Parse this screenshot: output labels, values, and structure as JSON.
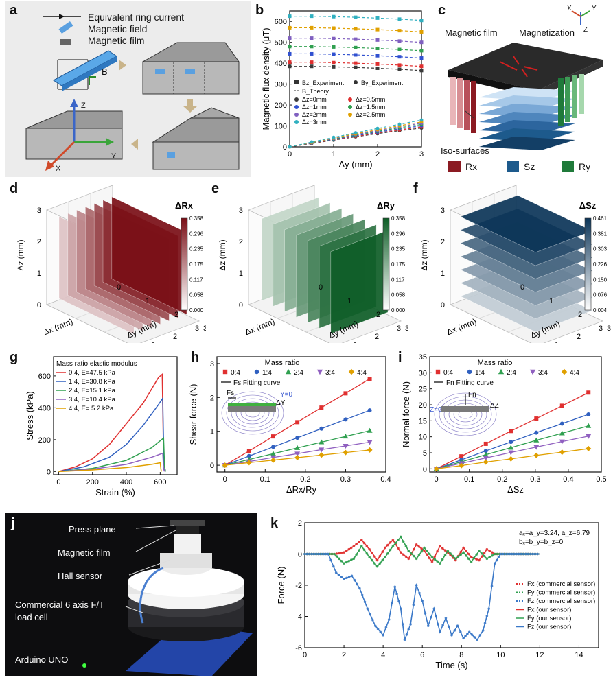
{
  "panel_labels": {
    "a": "a",
    "b": "b",
    "c": "c",
    "d": "d",
    "e": "e",
    "f": "f",
    "g": "g",
    "h": "h",
    "i": "i",
    "j": "j",
    "k": "k"
  },
  "panel_a": {
    "legend": [
      "Equivalent ring current",
      "Magnetic field",
      "Magnetic film"
    ],
    "b_label": "B",
    "axes": {
      "z": "Z",
      "y": "Y",
      "x": "X"
    }
  },
  "panel_c": {
    "labels": {
      "film": "Magnetic film",
      "magnetization": "Magnetization",
      "iso": "Iso-surfaces"
    },
    "legend": [
      {
        "name": "Rx",
        "color": "#8b1a22"
      },
      {
        "name": "Sz",
        "color": "#1d5a8c"
      },
      {
        "name": "Ry",
        "color": "#1f7a3a"
      }
    ],
    "axes": {
      "x": "X",
      "y": "Y",
      "z": "Z"
    }
  },
  "panels_def": [
    {
      "id": "d",
      "colorbar_title": "ΔRx",
      "ticks": [
        "0.358",
        "0.296",
        "0.235",
        "0.175",
        "0.117",
        "0.058",
        "0.000"
      ],
      "grad_top": "#7a0f16",
      "grad_bottom": "#ffffff",
      "xlabel": "Δx (mm)",
      "ylabel": "Δy (mm)",
      "zlabel": "Δz (mm)"
    },
    {
      "id": "e",
      "colorbar_title": "ΔRy",
      "ticks": [
        "0.358",
        "0.296",
        "0.235",
        "0.175",
        "0.117",
        "0.058",
        "0.000"
      ],
      "grad_top": "#0f5e28",
      "grad_bottom": "#ffffff",
      "xlabel": "Δx (mm)",
      "ylabel": "Δy (mm)",
      "zlabel": "Δz (mm)"
    },
    {
      "id": "f",
      "colorbar_title": "ΔSz",
      "ticks": [
        "0.461",
        "0.381",
        "0.303",
        "0.226",
        "0.150",
        "0.076",
        "0.004"
      ],
      "grad_top": "#0c3558",
      "grad_bottom": "#ffffff",
      "xlabel": "Δx (mm)",
      "ylabel": "Δy (mm)",
      "zlabel": "Δz (mm)"
    }
  ],
  "panel_j": {
    "labels": [
      "Press plane",
      "Magnetic film",
      "Hall sensor",
      "Commercial 6 axis F/T",
      "load cell",
      "Arduino UNO"
    ]
  },
  "chart_data": [
    {
      "id": "b",
      "type": "scatter",
      "xlabel": "Δy (mm)",
      "ylabel": "Magnetic flux density (μT)",
      "xlim": [
        0,
        3
      ],
      "ylim": [
        0,
        650
      ],
      "xticks": [
        0,
        1,
        2,
        3
      ],
      "yticks": [
        0,
        100,
        200,
        300,
        400,
        500,
        600
      ],
      "legend": [
        "Bz_Experiment",
        "By_Experiment",
        "B_Theory"
      ],
      "legend2": [
        "Δz=0mm",
        "Δz=0.5mm",
        "Δz=1mm",
        "Δz=1.5mm",
        "Δz=2mm",
        "Δz=2.5mm",
        "Δz=3mm"
      ],
      "x": [
        0,
        0.5,
        1,
        1.5,
        2,
        2.5,
        3
      ],
      "series": [
        {
          "name": "Δz=0mm",
          "color": "#3b3b3b",
          "bz": [
            385,
            385,
            383,
            380,
            376,
            371,
            365
          ],
          "by": [
            0,
            16,
            32,
            48,
            63,
            77,
            90
          ]
        },
        {
          "name": "Δz=0.5mm",
          "color": "#e03030",
          "bz": [
            405,
            405,
            403,
            400,
            396,
            391,
            385
          ],
          "by": [
            0,
            17,
            34,
            50,
            66,
            81,
            95
          ]
        },
        {
          "name": "Δz=1mm",
          "color": "#3050d0",
          "bz": [
            445,
            445,
            443,
            440,
            436,
            431,
            425
          ],
          "by": [
            0,
            18,
            36,
            53,
            70,
            86,
            101
          ]
        },
        {
          "name": "Δz=1.5mm",
          "color": "#30a050",
          "bz": [
            480,
            480,
            478,
            475,
            471,
            466,
            460
          ],
          "by": [
            0,
            19,
            38,
            56,
            74,
            91,
            107
          ]
        },
        {
          "name": "Δz=2mm",
          "color": "#8060c0",
          "bz": [
            520,
            520,
            518,
            515,
            511,
            506,
            500
          ],
          "by": [
            0,
            20,
            40,
            59,
            78,
            96,
            113
          ]
        },
        {
          "name": "Δz=2.5mm",
          "color": "#e0a000",
          "bz": [
            570,
            570,
            568,
            565,
            561,
            556,
            550
          ],
          "by": [
            0,
            21,
            42,
            62,
            82,
            101,
            119
          ]
        },
        {
          "name": "Δz=3mm",
          "color": "#30b0c0",
          "bz": [
            625,
            625,
            623,
            620,
            616,
            611,
            605
          ],
          "by": [
            0,
            23,
            45,
            67,
            88,
            108,
            128
          ]
        }
      ]
    },
    {
      "id": "g",
      "type": "line",
      "xlabel": "Strain (%)",
      "ylabel": "Stress (kPa)",
      "xlim": [
        -30,
        700
      ],
      "ylim": [
        -20,
        720
      ],
      "xticks": [
        0,
        200,
        400,
        600
      ],
      "yticks": [
        0,
        200,
        400,
        600
      ],
      "legend_title": "Mass ratio,elastic modulus",
      "series": [
        {
          "name": "0:4, E=47.5 kPa",
          "color": "#e03030",
          "points": [
            [
              0,
              0
            ],
            [
              100,
              30
            ],
            [
              200,
              80
            ],
            [
              300,
              170
            ],
            [
              400,
              300
            ],
            [
              500,
              430
            ],
            [
              590,
              590
            ],
            [
              612,
              610
            ],
            [
              620,
              80
            ],
            [
              630,
              0
            ]
          ]
        },
        {
          "name": "1:4, E=30.8 kPa",
          "color": "#3060c0",
          "points": [
            [
              0,
              0
            ],
            [
              150,
              30
            ],
            [
              300,
              90
            ],
            [
              400,
              170
            ],
            [
              500,
              290
            ],
            [
              590,
              420
            ],
            [
              615,
              460
            ],
            [
              622,
              60
            ],
            [
              630,
              0
            ]
          ]
        },
        {
          "name": "2:4, E=15.1 kPa",
          "color": "#30a050",
          "points": [
            [
              0,
              0
            ],
            [
              200,
              20
            ],
            [
              400,
              70
            ],
            [
              550,
              150
            ],
            [
              620,
              210
            ],
            [
              626,
              30
            ],
            [
              632,
              0
            ]
          ]
        },
        {
          "name": "3:4, E=10.4 kPa",
          "color": "#9060c0",
          "points": [
            [
              0,
              0
            ],
            [
              200,
              15
            ],
            [
              400,
              45
            ],
            [
              550,
              90
            ],
            [
              615,
              115
            ],
            [
              620,
              20
            ],
            [
              625,
              0
            ]
          ]
        },
        {
          "name": "4:4, E= 5.2 kPa",
          "color": "#e0a000",
          "points": [
            [
              0,
              0
            ],
            [
              200,
              10
            ],
            [
              400,
              25
            ],
            [
              550,
              45
            ],
            [
              600,
              55
            ],
            [
              605,
              10
            ],
            [
              608,
              0
            ]
          ]
        }
      ]
    },
    {
      "id": "h",
      "type": "scatter",
      "xlabel": "ΔRx/Ry",
      "ylabel": "Shear force (N)",
      "xlim": [
        -0.02,
        0.4
      ],
      "ylim": [
        -0.2,
        3.2
      ],
      "xticks": [
        0,
        0.1,
        0.2,
        0.3,
        0.4
      ],
      "yticks": [
        0,
        1,
        2,
        3
      ],
      "legend_title": "Mass ratio",
      "fit_label": "Fs Fitting curve",
      "inset": {
        "f": "Fs",
        "y0": "Y=0",
        "dy": "ΔY"
      },
      "x": [
        0,
        0.06,
        0.12,
        0.18,
        0.24,
        0.3,
        0.36
      ],
      "series": [
        {
          "name": "0:4",
          "color": "#e03030",
          "marker": "square",
          "y": [
            0,
            0.42,
            0.85,
            1.27,
            1.7,
            2.12,
            2.55
          ]
        },
        {
          "name": "1:4",
          "color": "#3060c0",
          "marker": "circle",
          "y": [
            0,
            0.27,
            0.54,
            0.81,
            1.08,
            1.35,
            1.62
          ]
        },
        {
          "name": "2:4",
          "color": "#30a050",
          "marker": "triangle",
          "y": [
            0,
            0.17,
            0.34,
            0.51,
            0.68,
            0.85,
            1.02
          ]
        },
        {
          "name": "3:4",
          "color": "#9060c0",
          "marker": "down",
          "y": [
            0,
            0.11,
            0.23,
            0.34,
            0.46,
            0.57,
            0.68
          ]
        },
        {
          "name": "4:4",
          "color": "#e0a000",
          "marker": "diamond",
          "y": [
            0,
            0.075,
            0.15,
            0.225,
            0.3,
            0.375,
            0.45
          ]
        }
      ]
    },
    {
      "id": "i",
      "type": "scatter",
      "xlabel": "ΔSz",
      "ylabel": "Normal force (N)",
      "xlim": [
        -0.02,
        0.5
      ],
      "ylim": [
        -1,
        35
      ],
      "xticks": [
        0,
        0.1,
        0.2,
        0.3,
        0.4,
        0.5
      ],
      "yticks": [
        0,
        5,
        10,
        15,
        20,
        25,
        30,
        35
      ],
      "legend_title": "Mass ratio",
      "fit_label": "Fn Fitting curve",
      "inset": {
        "f": "Fn",
        "z0": "Z=0",
        "dz": "ΔZ"
      },
      "x": [
        0,
        0.076,
        0.15,
        0.226,
        0.303,
        0.381,
        0.461
      ],
      "series": [
        {
          "name": "0:4",
          "color": "#e03030",
          "marker": "square",
          "y": [
            0,
            3.9,
            7.8,
            11.8,
            15.7,
            19.7,
            23.8
          ]
        },
        {
          "name": "1:4",
          "color": "#3060c0",
          "marker": "circle",
          "y": [
            0,
            2.8,
            5.6,
            8.4,
            11.3,
            14.1,
            17.0
          ]
        },
        {
          "name": "2:4",
          "color": "#30a050",
          "marker": "triangle",
          "y": [
            0,
            2.2,
            4.4,
            6.6,
            8.9,
            11.1,
            13.4
          ]
        },
        {
          "name": "3:4",
          "color": "#9060c0",
          "marker": "down",
          "y": [
            0,
            1.7,
            3.4,
            5.1,
            6.8,
            8.5,
            10.2
          ]
        },
        {
          "name": "4:4",
          "color": "#e0a000",
          "marker": "diamond",
          "y": [
            0,
            1.0,
            2.1,
            3.1,
            4.2,
            5.2,
            6.3
          ]
        }
      ]
    },
    {
      "id": "k",
      "type": "line",
      "xlabel": "Time (s)",
      "ylabel": "Force (N)",
      "xlim": [
        0,
        15
      ],
      "ylim": [
        -6,
        2
      ],
      "xticks": [
        0,
        2,
        4,
        6,
        8,
        10,
        12,
        14
      ],
      "yticks": [
        -6,
        -4,
        -2,
        0,
        2
      ],
      "annotation": [
        "aₓ=a_y=3.24, a_z=6.79",
        "bₓ=b_y=b_z=0"
      ],
      "legend": [
        "Fx (commercial sensor)",
        "Fy (commercial sensor)",
        "Fz (commercial sensor)",
        "Fx (our sensor)",
        "Fy (our sensor)",
        "Fz (our sensor)"
      ],
      "series": [
        {
          "name": "Fx",
          "color": "#e03030",
          "points": [
            [
              0,
              0
            ],
            [
              1.5,
              0
            ],
            [
              2,
              0.1
            ],
            [
              2.5,
              0.5
            ],
            [
              2.9,
              0.9
            ],
            [
              3.3,
              0.3
            ],
            [
              3.7,
              -0.4
            ],
            [
              4.1,
              0.4
            ],
            [
              4.5,
              0.9
            ],
            [
              4.9,
              0.1
            ],
            [
              5.3,
              -0.3
            ],
            [
              5.7,
              0.6
            ],
            [
              6.1,
              0.2
            ],
            [
              6.5,
              -0.5
            ],
            [
              6.9,
              0.5
            ],
            [
              7.3,
              0.1
            ],
            [
              7.7,
              -0.4
            ],
            [
              8.1,
              0.4
            ],
            [
              8.5,
              -0.2
            ],
            [
              8.9,
              -0.4
            ],
            [
              9.3,
              0.3
            ],
            [
              9.7,
              0
            ],
            [
              12,
              0
            ]
          ]
        },
        {
          "name": "Fy",
          "color": "#30a050",
          "points": [
            [
              0,
              0
            ],
            [
              1.5,
              0
            ],
            [
              2,
              -0.6
            ],
            [
              2.5,
              -0.3
            ],
            [
              2.9,
              0.5
            ],
            [
              3.3,
              -0.2
            ],
            [
              3.7,
              -0.8
            ],
            [
              4.1,
              -0.2
            ],
            [
              4.5,
              0.5
            ],
            [
              4.9,
              1.1
            ],
            [
              5.3,
              0.2
            ],
            [
              5.7,
              -0.3
            ],
            [
              6.1,
              0.4
            ],
            [
              6.5,
              -0.2
            ],
            [
              6.9,
              -0.6
            ],
            [
              7.3,
              0.2
            ],
            [
              7.7,
              -0.3
            ],
            [
              8.1,
              0.1
            ],
            [
              8.5,
              -0.5
            ],
            [
              8.9,
              0.2
            ],
            [
              9.3,
              -0.3
            ],
            [
              9.7,
              0
            ],
            [
              12,
              0
            ]
          ]
        },
        {
          "name": "Fz",
          "color": "#3a78c8",
          "points": [
            [
              0,
              0
            ],
            [
              1.2,
              0
            ],
            [
              1.6,
              -1.2
            ],
            [
              2.0,
              -1.6
            ],
            [
              2.4,
              -1.4
            ],
            [
              2.8,
              -2.2
            ],
            [
              3.2,
              -3.5
            ],
            [
              3.6,
              -4.6
            ],
            [
              4.0,
              -5.2
            ],
            [
              4.3,
              -4.2
            ],
            [
              4.6,
              -2.1
            ],
            [
              4.9,
              -3.5
            ],
            [
              5.1,
              -5.5
            ],
            [
              5.4,
              -4.5
            ],
            [
              5.7,
              -2.0
            ],
            [
              6.0,
              -3.0
            ],
            [
              6.3,
              -4.6
            ],
            [
              6.6,
              -3.5
            ],
            [
              6.9,
              -5.0
            ],
            [
              7.2,
              -4.1
            ],
            [
              7.5,
              -5.2
            ],
            [
              7.8,
              -4.6
            ],
            [
              8.1,
              -5.4
            ],
            [
              8.4,
              -5.0
            ],
            [
              8.8,
              -5.5
            ],
            [
              9.1,
              -4.9
            ],
            [
              9.4,
              -3.5
            ],
            [
              9.7,
              -0.6
            ],
            [
              10,
              0
            ],
            [
              12,
              0
            ]
          ]
        }
      ]
    }
  ]
}
